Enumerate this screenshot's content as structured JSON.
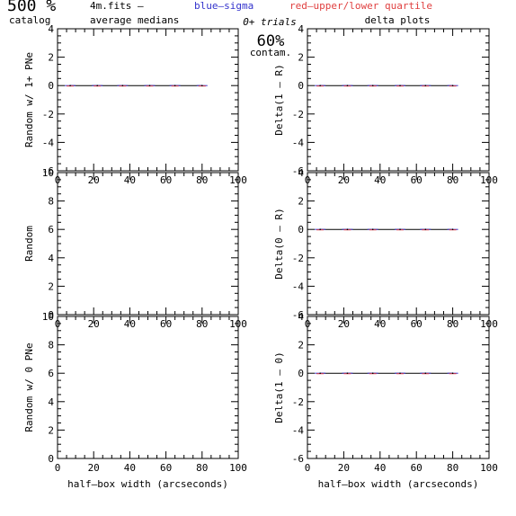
{
  "header": {
    "percent_label": "500 %",
    "catalog_label": "catalog",
    "file_label": "4m.fits  –",
    "average_label": "average medians",
    "blue_label": "blue–sigma",
    "red_label": "red–upper/lower quartile",
    "trials_label": "0+ trials",
    "contam_value": "60%",
    "contam_label": "contam.",
    "delta_title": "delta plots"
  },
  "colors": {
    "axis": "#000000",
    "blue_series": "#3333cc",
    "red_series": "#e04040",
    "median_line": "#000000"
  },
  "chart_data": [
    {
      "id": "left-top",
      "type": "line",
      "ylabel": "Random w/ 1+ PNe",
      "xlabel": "",
      "xlim": [
        0,
        100
      ],
      "ylim": [
        -6,
        4
      ],
      "xticks": [
        0,
        20,
        40,
        60,
        80,
        100
      ],
      "yticks": [
        -6,
        -4,
        -2,
        0,
        2,
        4
      ],
      "x": [
        7,
        22,
        36,
        51,
        65,
        80
      ],
      "series": [
        {
          "values": [
            0,
            0,
            0,
            0,
            0,
            0
          ]
        }
      ],
      "grid": false
    },
    {
      "id": "left-middle",
      "type": "line",
      "ylabel": "Random",
      "xlabel": "",
      "xlim": [
        0,
        100
      ],
      "ylim": [
        0,
        10
      ],
      "xticks": [
        0,
        20,
        40,
        60,
        80,
        100
      ],
      "yticks": [
        0,
        2,
        4,
        6,
        8,
        10
      ],
      "x": [],
      "series": [],
      "grid": false
    },
    {
      "id": "left-bottom",
      "type": "line",
      "ylabel": "Random w/ 0 PNe",
      "xlabel": "half–box width (arcseconds)",
      "xlim": [
        0,
        100
      ],
      "ylim": [
        0,
        10
      ],
      "xticks": [
        0,
        20,
        40,
        60,
        80,
        100
      ],
      "yticks": [
        0,
        2,
        4,
        6,
        8,
        10
      ],
      "x": [],
      "series": [],
      "grid": false
    },
    {
      "id": "right-top",
      "type": "line",
      "ylabel": "Delta(1 – R)",
      "xlabel": "",
      "xlim": [
        0,
        100
      ],
      "ylim": [
        -6,
        4
      ],
      "xticks": [
        0,
        20,
        40,
        60,
        80,
        100
      ],
      "yticks": [
        -6,
        -4,
        -2,
        0,
        2,
        4
      ],
      "x": [
        7,
        22,
        36,
        51,
        65,
        80
      ],
      "series": [
        {
          "values": [
            0,
            0,
            0,
            0,
            0,
            0
          ]
        }
      ],
      "grid": false
    },
    {
      "id": "right-middle",
      "type": "line",
      "ylabel": "Delta(0 – R)",
      "xlabel": "",
      "xlim": [
        0,
        100
      ],
      "ylim": [
        -6,
        4
      ],
      "xticks": [
        0,
        20,
        40,
        60,
        80,
        100
      ],
      "yticks": [
        -6,
        -4,
        -2,
        0,
        2,
        4
      ],
      "x": [
        7,
        22,
        36,
        51,
        65,
        80
      ],
      "series": [
        {
          "values": [
            0,
            0,
            0,
            0,
            0,
            0
          ]
        }
      ],
      "grid": false
    },
    {
      "id": "right-bottom",
      "type": "line",
      "ylabel": "Delta(1 – 0)",
      "xlabel": "half–box width (arcseconds)",
      "xlim": [
        0,
        100
      ],
      "ylim": [
        -6,
        4
      ],
      "xticks": [
        0,
        20,
        40,
        60,
        80,
        100
      ],
      "yticks": [
        -6,
        -4,
        -2,
        0,
        2,
        4
      ],
      "x": [
        7,
        22,
        36,
        51,
        65,
        80
      ],
      "series": [
        {
          "values": [
            0,
            0,
            0,
            0,
            0,
            0
          ]
        }
      ],
      "grid": false
    }
  ]
}
